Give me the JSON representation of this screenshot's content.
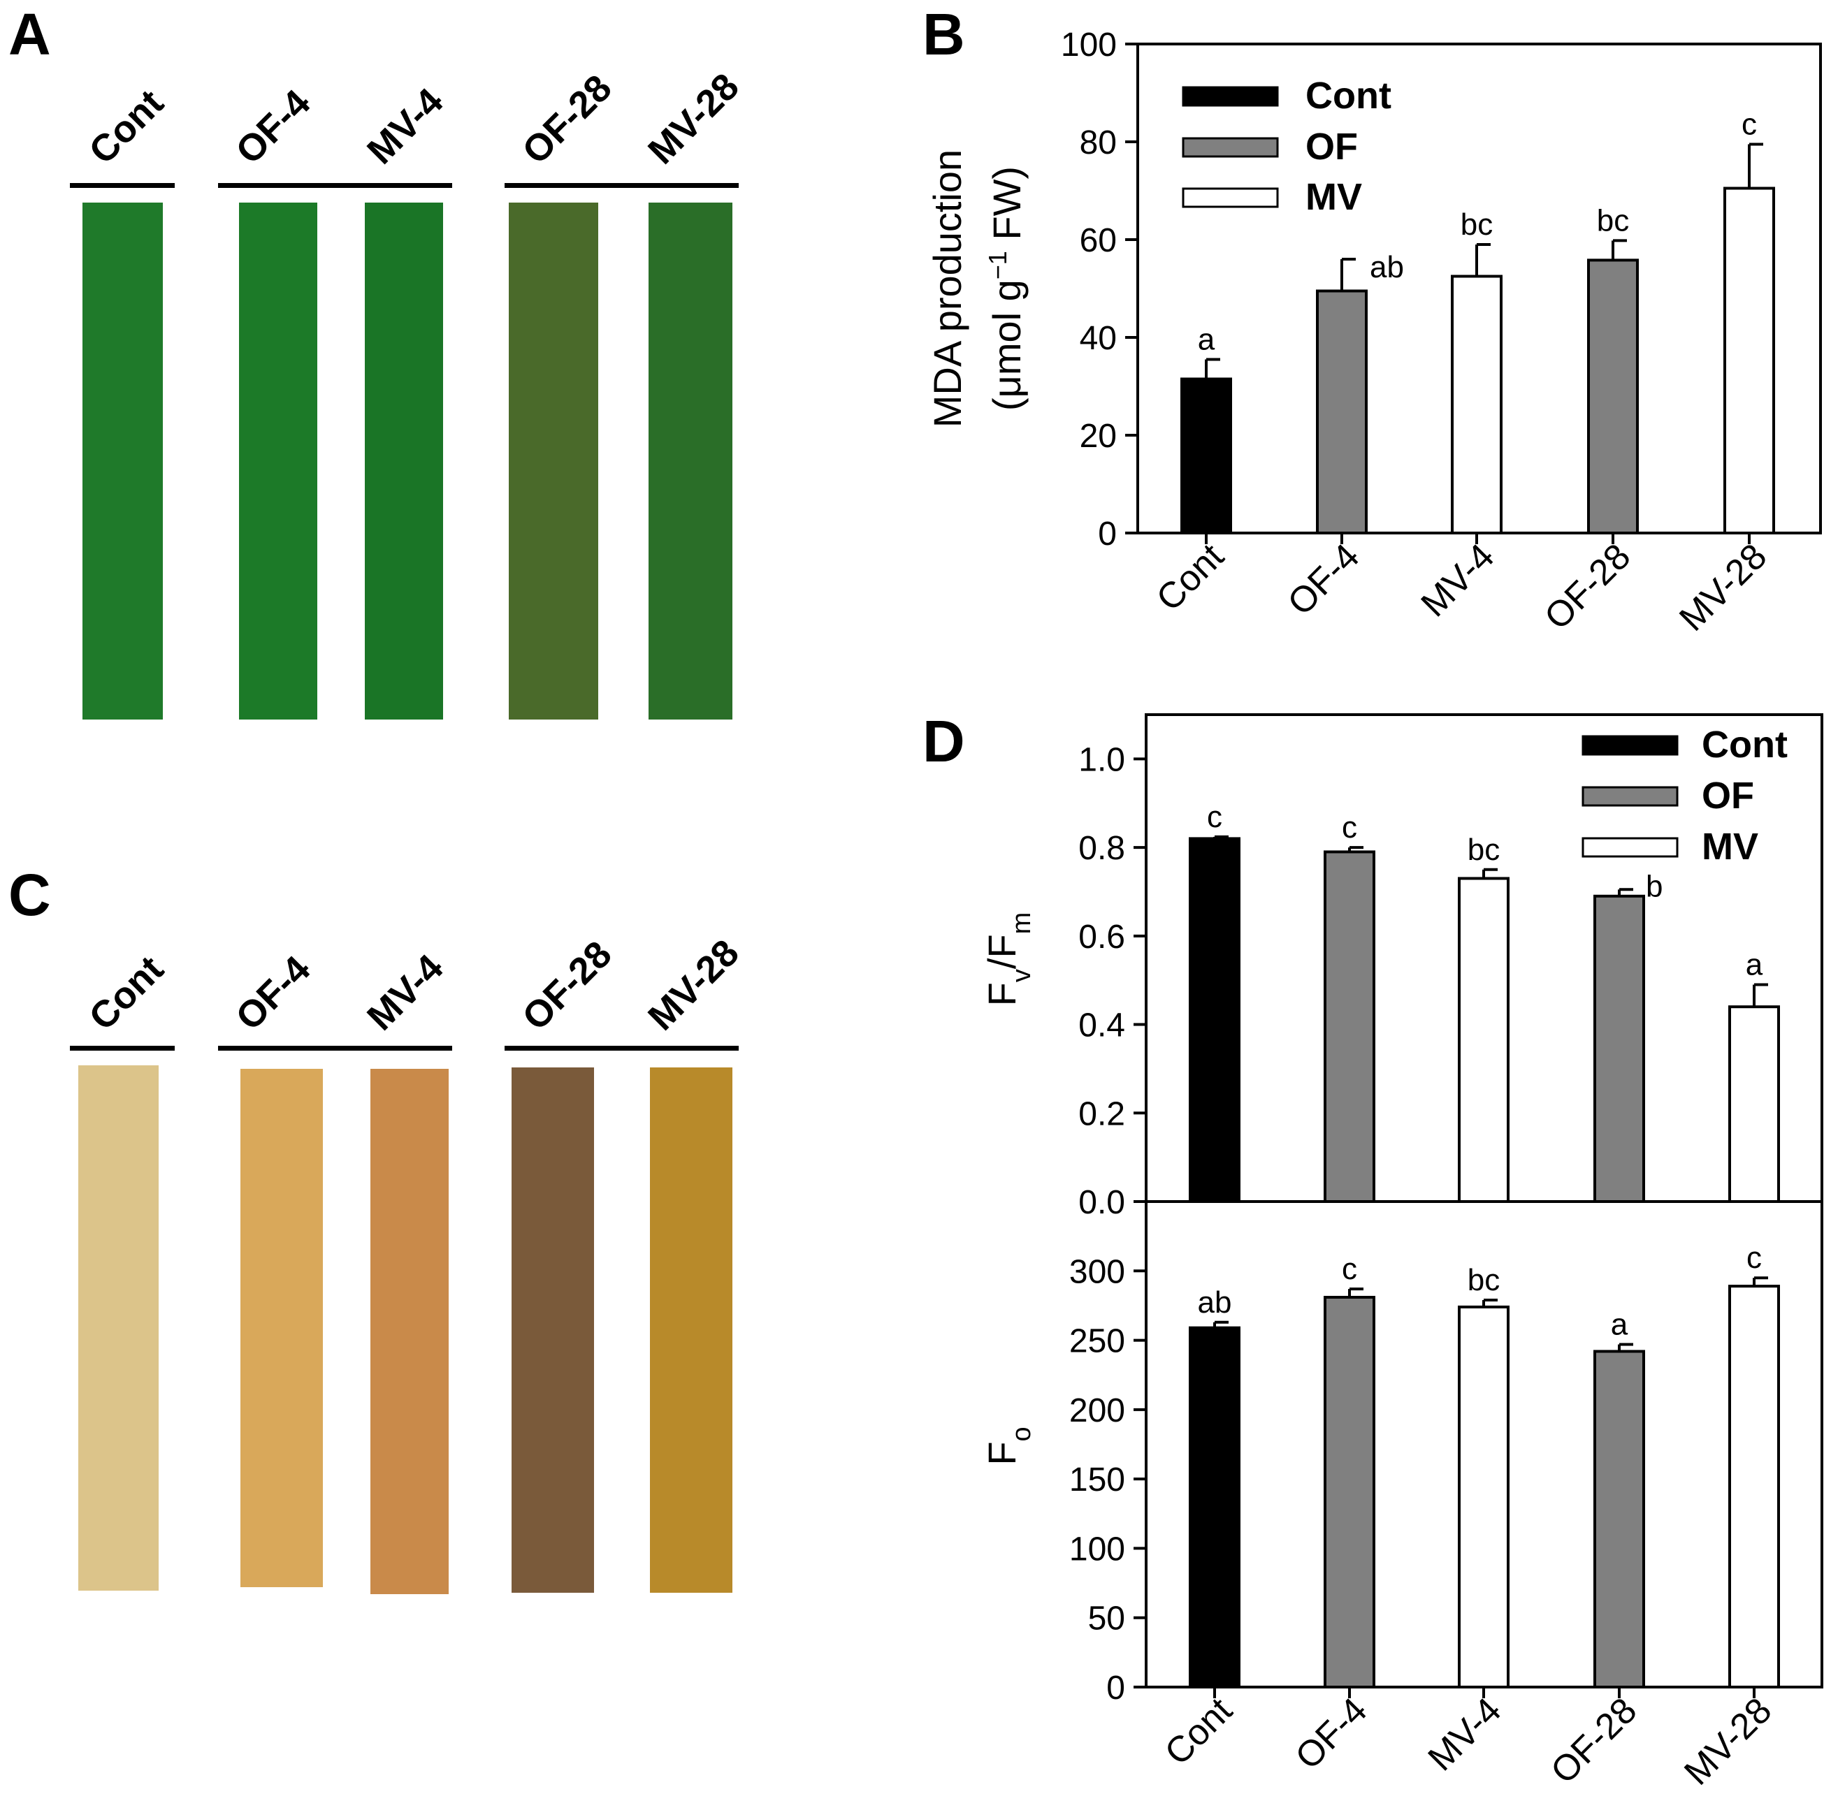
{
  "panels": {
    "A": "A",
    "B": "B",
    "C": "C",
    "D": "D"
  },
  "leaf_panels": {
    "labels": [
      "Cont",
      "OF-4",
      "MV-4",
      "OF-28",
      "MV-28"
    ],
    "colors": {
      "A": [
        "#1f7a2a",
        "#1c7a28",
        "#1a7526",
        "#4a6a2a",
        "#2a6e28"
      ],
      "C": [
        "#dcc48a",
        "#d9a85a",
        "#c98a4a",
        "#7a5a3a",
        "#b88a2a"
      ]
    }
  },
  "chart_data": [
    {
      "id": "B",
      "type": "bar",
      "categories": [
        "Cont",
        "OF-4",
        "MV-4",
        "OF-28",
        "MV-28"
      ],
      "values": [
        31.5,
        49.5,
        52.5,
        55.8,
        70.5
      ],
      "errors": [
        4,
        6.5,
        6.5,
        4,
        9
      ],
      "groups": [
        "Cont",
        "OF",
        "MV",
        "OF",
        "MV"
      ],
      "sig_letters": [
        "a",
        "ab",
        "bc",
        "bc",
        "c"
      ],
      "ylabel_line1": "MDA production",
      "ylabel_line2_prefix": "(μmol g",
      "ylabel_sup": "−1",
      "ylabel_line2_suffix": " FW)",
      "ylim": [
        0,
        100
      ],
      "yticks": [
        "0",
        "20",
        "40",
        "60",
        "80",
        "100"
      ],
      "legend": [
        "Cont",
        "OF",
        "MV"
      ]
    },
    {
      "id": "D_top",
      "type": "bar",
      "categories": [
        "Cont",
        "OF-4",
        "MV-4",
        "OF-28",
        "MV-28"
      ],
      "values": [
        0.82,
        0.79,
        0.73,
        0.69,
        0.44
      ],
      "errors": [
        0.004,
        0.01,
        0.02,
        0.015,
        0.05
      ],
      "groups": [
        "Cont",
        "OF",
        "MV",
        "OF",
        "MV"
      ],
      "sig_letters": [
        "c",
        "c",
        "bc",
        "b",
        "a"
      ],
      "ylabel_main": "F",
      "ylabel_sub1": "v",
      "ylabel_slash": "/F",
      "ylabel_sub2": "m",
      "ylim": [
        0,
        1.1
      ],
      "yticks": [
        "0.0",
        "0.2",
        "0.4",
        "0.6",
        "0.8",
        "1.0"
      ],
      "legend": [
        "Cont",
        "OF",
        "MV"
      ]
    },
    {
      "id": "D_bottom",
      "type": "bar",
      "categories": [
        "Cont",
        "OF-4",
        "MV-4",
        "OF-28",
        "MV-28"
      ],
      "values": [
        259,
        281,
        274,
        242,
        289
      ],
      "errors": [
        4,
        6,
        5,
        5,
        6
      ],
      "groups": [
        "Cont",
        "OF",
        "MV",
        "OF",
        "MV"
      ],
      "sig_letters": [
        "ab",
        "c",
        "bc",
        "a",
        "c"
      ],
      "ylabel_main": "F",
      "ylabel_sub": "o",
      "ylim": [
        0,
        350
      ],
      "yticks": [
        "0",
        "50",
        "100",
        "150",
        "200",
        "250",
        "300"
      ]
    }
  ],
  "colors": {
    "Cont": "#000000",
    "OF": "#808080",
    "MV": "#ffffff"
  }
}
